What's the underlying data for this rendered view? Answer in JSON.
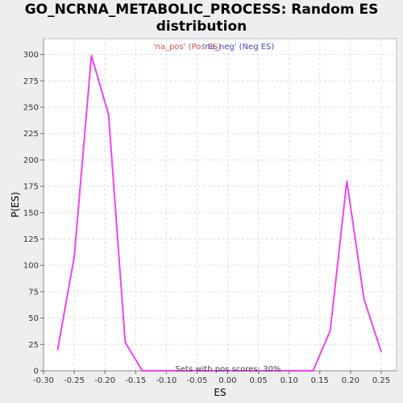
{
  "chart_data": {
    "type": "line",
    "title_line1": "GO_NCRNA_METABOLIC_PROCESS: Random ES",
    "title_line2": "distribution",
    "xlabel": "ES",
    "ylabel": "P(ES)",
    "xlim": [
      -0.3,
      0.275
    ],
    "ylim": [
      0,
      315
    ],
    "xticks": [
      -0.3,
      -0.25,
      -0.2,
      -0.15,
      -0.1,
      -0.05,
      0.0,
      0.05,
      0.1,
      0.15,
      0.2,
      0.25
    ],
    "xtick_labels": [
      "-0.30",
      "-0.25",
      "-0.20",
      "-0.15",
      "-0.10",
      "-0.05",
      "0.00",
      "0.05",
      "0.10",
      "0.15",
      "0.20",
      "0.25"
    ],
    "yticks": [
      0,
      25,
      50,
      75,
      100,
      125,
      150,
      175,
      200,
      225,
      250,
      275,
      300
    ],
    "grid": true,
    "legend": {
      "placement": "top-center",
      "entries": [
        {
          "text": "'na_pos' (Pos ES)",
          "color": "#d94a4a"
        },
        {
          "text": "'na_neg' (Neg ES)",
          "color": "#4444cc"
        }
      ]
    },
    "annotation": "Sets with pos scores: 30%",
    "series": [
      {
        "color": "#ee44ee",
        "x": [
          -0.277,
          -0.25,
          -0.222,
          -0.194,
          -0.167,
          -0.139,
          -0.111,
          -0.083,
          -0.056,
          -0.028,
          0.0,
          0.028,
          0.056,
          0.083,
          0.111,
          0.139,
          0.167,
          0.194,
          0.222,
          0.25
        ],
        "y": [
          20,
          108,
          299,
          243,
          27,
          0,
          0,
          0,
          0,
          0,
          0,
          0,
          0,
          0,
          0,
          0,
          38,
          180,
          68,
          18
        ]
      }
    ]
  }
}
